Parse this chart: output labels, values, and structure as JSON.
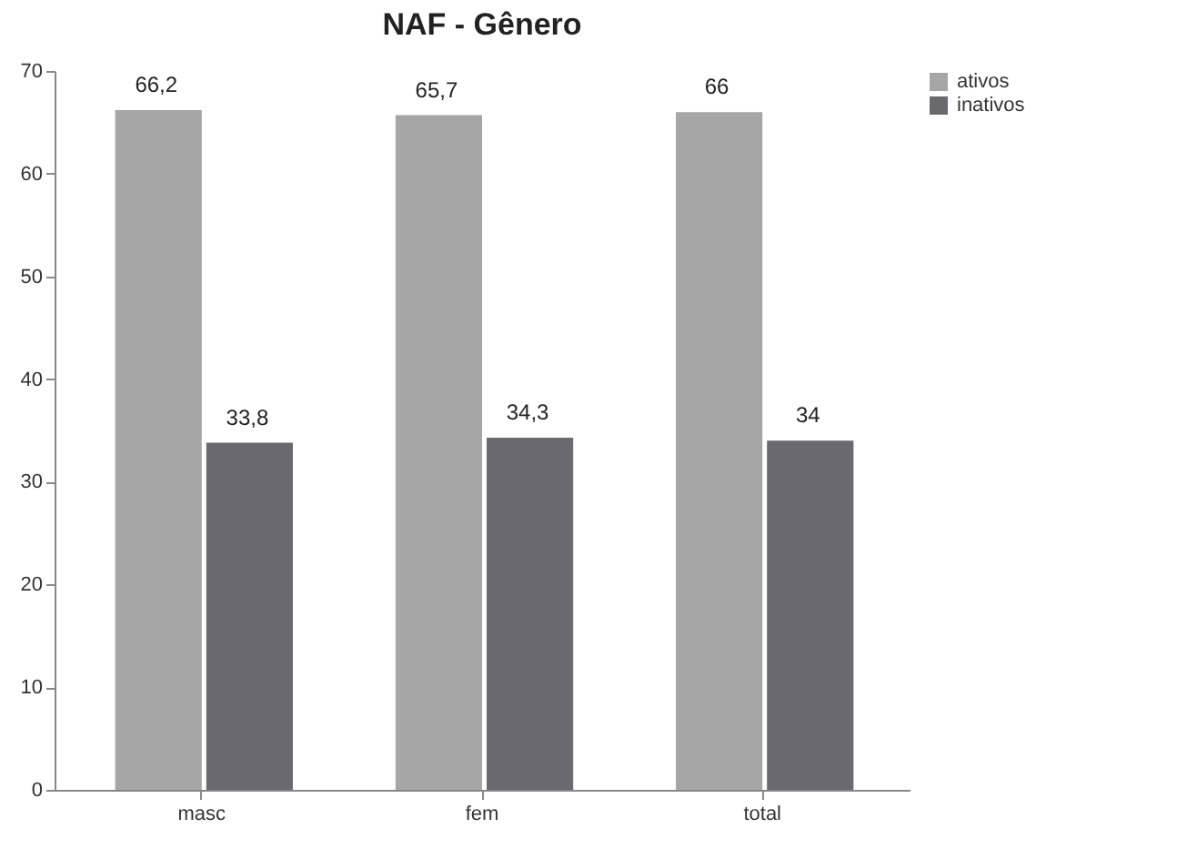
{
  "chart_data": {
    "type": "bar",
    "title": "NAF - Gênero",
    "categories": [
      "masc",
      "fem",
      "total"
    ],
    "series": [
      {
        "name": "ativos",
        "color": "#a6a6a6",
        "values": [
          66.2,
          65.7,
          66
        ]
      },
      {
        "name": "inativos",
        "color": "#6a6a6e",
        "values": [
          33.8,
          34.3,
          34
        ]
      }
    ],
    "value_labels": [
      [
        "66,2",
        "65,7",
        "66"
      ],
      [
        "33,8",
        "34,3",
        "34"
      ]
    ],
    "ylim": [
      0,
      70
    ],
    "yticks": [
      0,
      10,
      20,
      30,
      40,
      50,
      60,
      70
    ],
    "grid": false,
    "legend": "right"
  }
}
